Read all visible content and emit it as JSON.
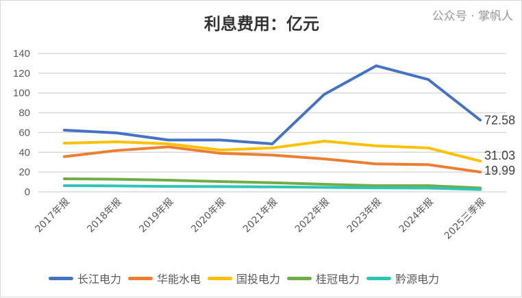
{
  "chart_data": {
    "type": "line",
    "title": "利息费用：亿元",
    "categories": [
      "2017年报",
      "2018年报",
      "2019年报",
      "2020年报",
      "2021年报",
      "2022年报",
      "2023年报",
      "2024年报",
      "2025三季报"
    ],
    "ylim": [
      0,
      140
    ],
    "yticks": [
      0,
      20,
      40,
      60,
      80,
      100,
      120,
      140
    ],
    "grid": true,
    "legend_position": "bottom",
    "series": [
      {
        "name": "长江电力",
        "color": "#4472C4",
        "values": [
          62.4,
          59.6,
          52.4,
          52.4,
          48.5,
          98.6,
          127.5,
          113.6,
          72.58
        ],
        "end_label": "72.58"
      },
      {
        "name": "华能水电",
        "color": "#ED7D31",
        "values": [
          35.6,
          41.8,
          45.5,
          39.0,
          37.2,
          33.3,
          28.2,
          27.5,
          19.99
        ],
        "end_label": "19.99"
      },
      {
        "name": "国投电力",
        "color": "#FFC000",
        "values": [
          49.2,
          50.6,
          48.5,
          42.3,
          44.4,
          51.3,
          46.4,
          44.4,
          31.03
        ],
        "end_label": "31.03"
      },
      {
        "name": "桂冠电力",
        "color": "#70AD47",
        "values": [
          13.2,
          12.7,
          11.8,
          10.4,
          9.2,
          7.6,
          6.2,
          6.2,
          3.9
        ]
      },
      {
        "name": "黔源电力",
        "color": "#2EC4B6",
        "values": [
          6.2,
          6.0,
          5.5,
          5.3,
          5.0,
          4.5,
          4.0,
          3.8,
          2.3
        ]
      }
    ]
  },
  "watermark": "公众号 · 掌帆人"
}
